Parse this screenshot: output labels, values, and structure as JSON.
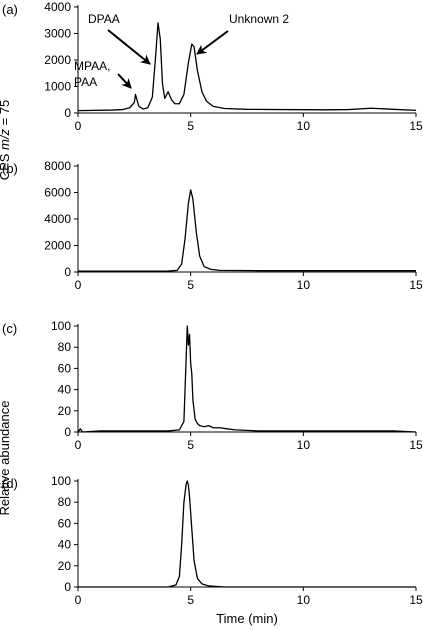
{
  "figure": {
    "ylabel_top_prefix": "CPS ",
    "ylabel_top_italic": "m/z",
    "ylabel_top_suffix": " = 75",
    "ylabel_bottom": "Relative abundance",
    "xlabel": "Time (min)"
  },
  "chart_data": [
    {
      "type": "line",
      "panel_label": "(a)",
      "xlim": [
        0,
        15
      ],
      "ylim": [
        0,
        4000
      ],
      "x_ticks": [
        0,
        5,
        10,
        15
      ],
      "y_ticks": [
        0,
        1000,
        2000,
        3000,
        4000
      ],
      "annotations": [
        {
          "text": "DPAA",
          "x": 3.6,
          "y": 3400
        },
        {
          "text": "Unknown 2",
          "x": 5.1,
          "y": 2600
        },
        {
          "text": "MPAA,",
          "x": 2.55,
          "y": 700
        },
        {
          "text": "PAA",
          "x": 2.55,
          "y": 700
        }
      ],
      "series": [
        {
          "x": [
            0,
            1.5,
            2.0,
            2.3,
            2.5,
            2.55,
            2.6,
            2.7,
            2.9,
            3.1,
            3.3,
            3.45,
            3.55,
            3.65,
            3.75,
            3.85,
            4.0,
            4.15,
            4.3,
            4.5,
            4.7,
            4.9,
            5.05,
            5.15,
            5.3,
            5.5,
            5.7,
            6.0,
            6.5,
            7.5,
            9.0,
            11.0,
            12.0,
            13.0,
            14.0,
            15.0
          ],
          "y": [
            90,
            110,
            130,
            200,
            400,
            700,
            550,
            250,
            150,
            200,
            600,
            2200,
            3400,
            2800,
            1100,
            550,
            800,
            500,
            350,
            350,
            700,
            1900,
            2600,
            2500,
            1600,
            800,
            450,
            250,
            170,
            140,
            130,
            120,
            130,
            180,
            140,
            100
          ]
        }
      ]
    },
    {
      "type": "line",
      "panel_label": "(b)",
      "xlim": [
        0,
        15
      ],
      "ylim": [
        0,
        8000
      ],
      "x_ticks": [
        0,
        5,
        10,
        15
      ],
      "y_ticks": [
        0,
        2000,
        4000,
        6000,
        8000
      ],
      "series": [
        {
          "x": [
            0,
            4.0,
            4.4,
            4.6,
            4.75,
            4.9,
            5.0,
            5.1,
            5.25,
            5.4,
            5.6,
            5.9,
            6.3,
            8.0,
            15.0
          ],
          "y": [
            60,
            70,
            120,
            600,
            2500,
            5200,
            6200,
            5500,
            3000,
            1200,
            400,
            200,
            120,
            100,
            100
          ]
        }
      ]
    },
    {
      "type": "line",
      "panel_label": "(c)",
      "xlim": [
        0,
        15
      ],
      "ylim": [
        0,
        100
      ],
      "x_ticks": [
        0,
        5,
        10,
        15
      ],
      "y_ticks": [
        0,
        20,
        40,
        60,
        80,
        100
      ],
      "series": [
        {
          "x": [
            0,
            0.1,
            0.2,
            1.0,
            2.0,
            3.0,
            4.0,
            4.5,
            4.7,
            4.8,
            4.85,
            4.9,
            4.95,
            5.0,
            5.05,
            5.1,
            5.2,
            5.3,
            5.4,
            5.6,
            5.8,
            6.0,
            6.3,
            6.6,
            7.0,
            8.0,
            10.0,
            12.0,
            14.0,
            15.0
          ],
          "y": [
            0,
            3,
            0,
            1,
            1,
            1,
            1,
            2,
            10,
            70,
            100,
            82,
            92,
            65,
            55,
            30,
            12,
            8,
            6,
            5,
            6,
            4,
            4,
            3,
            2,
            1,
            1,
            1,
            1,
            0
          ]
        }
      ]
    },
    {
      "type": "line",
      "panel_label": "(d)",
      "xlim": [
        0,
        15
      ],
      "ylim": [
        0,
        100
      ],
      "x_ticks": [
        0,
        5,
        10,
        15
      ],
      "y_ticks": [
        0,
        20,
        40,
        60,
        80,
        100
      ],
      "series": [
        {
          "x": [
            0,
            4.0,
            4.35,
            4.5,
            4.6,
            4.7,
            4.8,
            4.85,
            4.9,
            4.95,
            5.05,
            5.15,
            5.3,
            5.5,
            5.8,
            6.5,
            15.0
          ],
          "y": [
            0,
            0,
            2,
            10,
            40,
            80,
            97,
            100,
            96,
            85,
            55,
            25,
            8,
            3,
            1,
            0,
            0
          ]
        }
      ]
    }
  ]
}
